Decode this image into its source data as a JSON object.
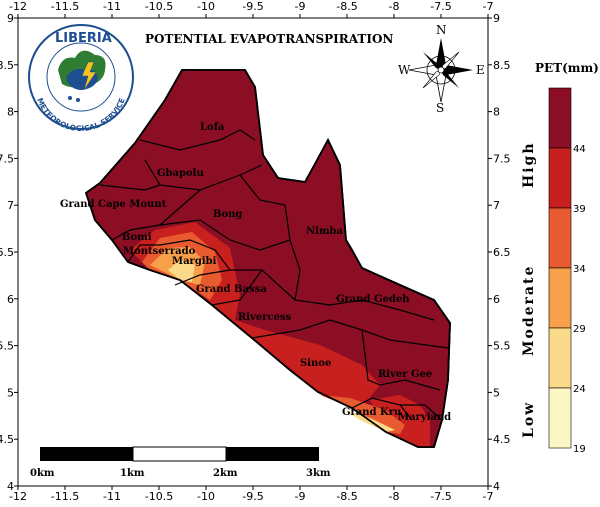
{
  "title": "POTENTIAL EVAPOTRANSPIRATION",
  "logo": {
    "line1": "LIBERIA",
    "line2": "METEOROLOGICAL SERVICE"
  },
  "compass": {
    "n": "N",
    "s": "S",
    "e": "E",
    "w": "W"
  },
  "x_ticks": [
    "-12",
    "-11.5",
    "-11",
    "-10.5",
    "-10",
    "-9.5",
    "-9",
    "-8.5",
    "-8",
    "-7.5",
    "-7"
  ],
  "y_ticks": [
    "9",
    "8.5",
    "8",
    "7.5",
    "7",
    "6.5",
    "6",
    "5.5",
    "5",
    "4.5",
    "4"
  ],
  "counties": [
    "Lofa",
    "Gbapolu",
    "Grand Cape Mount",
    "Bong",
    "Nimba",
    "Bomi",
    "Montserrado",
    "Margibi",
    "Grand Bassa",
    "Grand Gedeh",
    "Rivercess",
    "Sinoe",
    "River Gee",
    "Grand Kru",
    "Maryland"
  ],
  "colorbar": {
    "title": "PET(mm)",
    "ticks": [
      "44",
      "39",
      "34",
      "29",
      "24",
      "19"
    ],
    "colors": [
      "#8b0e24",
      "#c8201f",
      "#e85a30",
      "#f7a049",
      "#fbd98a",
      "#fdf6c5"
    ],
    "categories": [
      "High",
      "Moderate",
      "Low"
    ]
  },
  "scalebar": {
    "labels": [
      "0km",
      "1km",
      "2km",
      "3km"
    ]
  }
}
